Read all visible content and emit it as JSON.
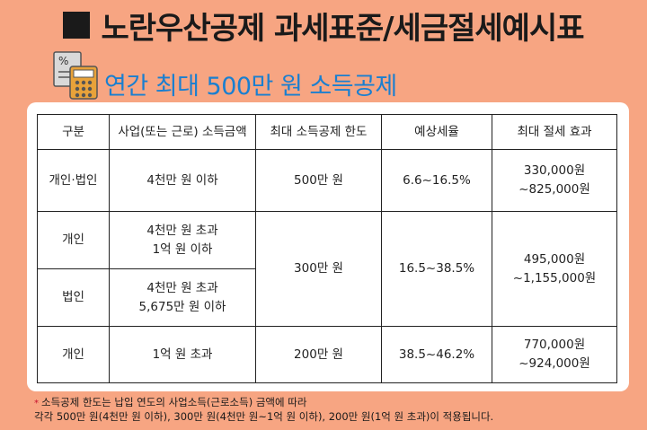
{
  "title": "노란우산공제 과세표준/세금절세예시표",
  "subtitle": "연간 최대 500만 원 소득공제",
  "icon": "calculator-document-icon",
  "table": {
    "headers": [
      "구분",
      "사업(또는 근로) 소득금액",
      "최대 소득공제 한도",
      "예상세율",
      "최대 절세 효과"
    ],
    "row1": {
      "type": "개인·법인",
      "income": "4천만 원 이하",
      "limit": "500만 원",
      "rate": "6.6~16.5%",
      "effect_1": "330,000원",
      "effect_2": "~825,000원"
    },
    "row2": {
      "type": "개인",
      "income_1": "4천만 원 초과",
      "income_2": "1억 원 이하",
      "limit": "300만 원",
      "rate": "16.5~38.5%",
      "effect_1": "495,000원",
      "effect_2": "~1,155,000원"
    },
    "row3": {
      "type": "법인",
      "income_1": "4천만 원 초과",
      "income_2": "5,675만 원 이하"
    },
    "row4": {
      "type": "개인",
      "income": "1억 원 초과",
      "limit": "200만 원",
      "rate": "38.5~46.2%",
      "effect_1": "770,000원",
      "effect_2": "~924,000원"
    }
  },
  "note": {
    "line1": "소득공제 한도는 납입 연도의 사업소득(근로소득) 금액에 따라",
    "line2": "각각 500만 원(4천만 원 이하), 300만 원(4천만 원~1억 원 이하), 200만 원(1억 원 초과)이 적용됩니다."
  },
  "colors": {
    "background": "#f7a582",
    "subtitle": "#1a7fd0",
    "panel": "#ffffff"
  }
}
